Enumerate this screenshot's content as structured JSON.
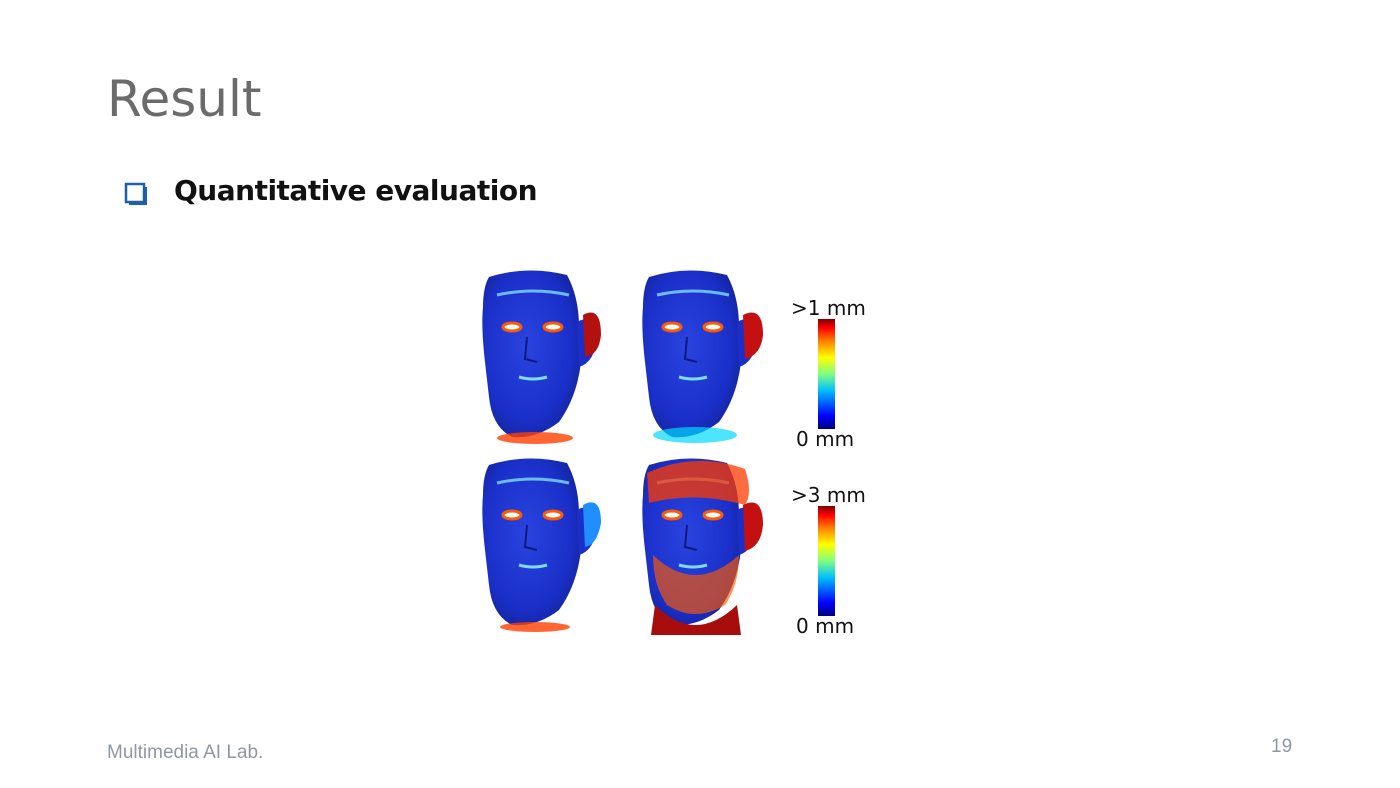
{
  "slide": {
    "title": "Result",
    "bullet": {
      "icon": "hollow-square-bullet-icon",
      "text": "Quantitative evaluation"
    },
    "figure": {
      "images": [
        {
          "name": "face-heatmap-top-left",
          "icon": "face-error-heatmap-icon"
        },
        {
          "name": "face-heatmap-top-right",
          "icon": "face-error-heatmap-icon"
        },
        {
          "name": "face-heatmap-bottom-left",
          "icon": "face-error-heatmap-icon"
        },
        {
          "name": "face-heatmap-bottom-right",
          "icon": "face-error-heatmap-icon"
        }
      ],
      "colorbars": [
        {
          "max_label": ">1 mm",
          "min_label": "0 mm"
        },
        {
          "max_label": ">3 mm",
          "min_label": "0 mm"
        }
      ],
      "colormap": [
        "#00007f",
        "#0000ff",
        "#00bfff",
        "#7fff7f",
        "#ffff00",
        "#ff7f00",
        "#ff0000",
        "#7f0000"
      ]
    },
    "footer": {
      "left_text": "Multimedia AI Lab.",
      "page_number": "19"
    },
    "colors": {
      "title": "#6b6b6b",
      "bullet": "#1f5fa8",
      "footer": "#8e98a6",
      "face_base": "#1a2fc8"
    }
  }
}
